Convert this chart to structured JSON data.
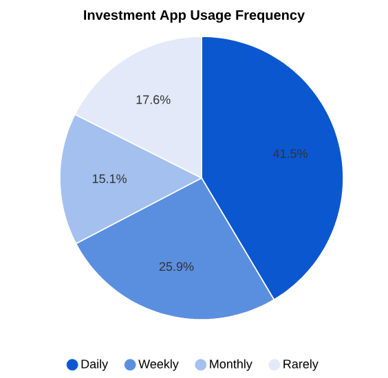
{
  "chart_data": {
    "type": "pie",
    "title": "Investment App Usage Frequency",
    "categories": [
      "Daily",
      "Weekly",
      "Monthly",
      "Rarely"
    ],
    "values": [
      41.5,
      25.9,
      15.1,
      17.6
    ],
    "colors": [
      "#0b57d0",
      "#5a8fe0",
      "#a3c0ee",
      "#e3e9f8"
    ],
    "value_labels": [
      "41.5%",
      "25.9%",
      "15.1%",
      "17.6%"
    ],
    "legend": "bottom"
  }
}
